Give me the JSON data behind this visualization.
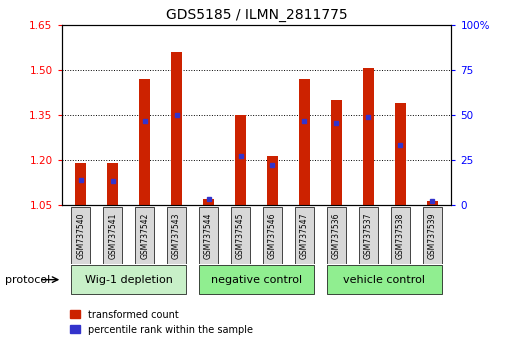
{
  "title": "GDS5185 / ILMN_2811775",
  "samples": [
    "GSM737540",
    "GSM737541",
    "GSM737542",
    "GSM737543",
    "GSM737544",
    "GSM737545",
    "GSM737546",
    "GSM737547",
    "GSM737536",
    "GSM737537",
    "GSM737538",
    "GSM737539"
  ],
  "groups": [
    {
      "label": "Wig-1 depletion",
      "indices": [
        0,
        1,
        2,
        3
      ],
      "color": "#c8f0c8"
    },
    {
      "label": "negative control",
      "indices": [
        4,
        5,
        6,
        7
      ],
      "color": "#90ee90"
    },
    {
      "label": "vehicle control",
      "indices": [
        8,
        9,
        10,
        11
      ],
      "color": "#90ee90"
    }
  ],
  "bar_tops": [
    1.19,
    1.19,
    1.47,
    1.56,
    1.07,
    1.35,
    1.215,
    1.47,
    1.4,
    1.505,
    1.39,
    1.065
  ],
  "blue_dot_y": [
    1.135,
    1.13,
    1.33,
    1.35,
    1.07,
    1.215,
    1.185,
    1.33,
    1.325,
    1.345,
    1.25,
    1.065
  ],
  "bar_base": 1.05,
  "ylim_left": [
    1.05,
    1.65
  ],
  "ylim_right": [
    0,
    100
  ],
  "yticks_left": [
    1.05,
    1.2,
    1.35,
    1.5,
    1.65
  ],
  "yticks_right": [
    0,
    25,
    50,
    75,
    100
  ],
  "bar_color": "#cc2200",
  "dot_color": "#3333cc",
  "bar_width": 0.35,
  "tick_fontsize": 7.5,
  "title_fontsize": 10
}
